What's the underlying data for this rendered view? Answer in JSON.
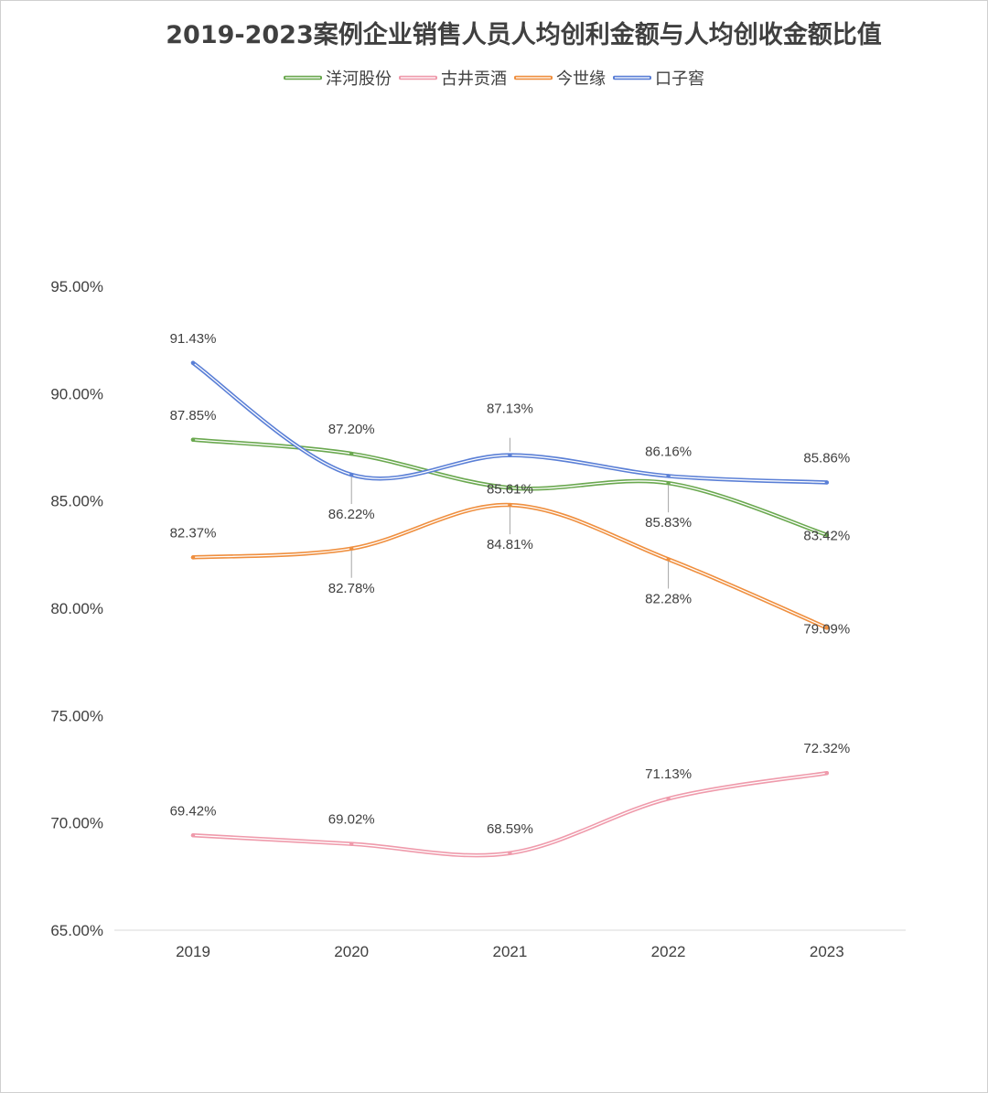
{
  "chart_data": {
    "type": "line",
    "title": "2019-2023案例企业销售人员人均创利金额与人均创收金额比值",
    "categories": [
      "2019",
      "2020",
      "2021",
      "2022",
      "2023"
    ],
    "ylim": [
      65,
      95
    ],
    "yticks": [
      65,
      70,
      75,
      80,
      85,
      90,
      95
    ],
    "ytick_labels": [
      "65.00%",
      "70.00%",
      "75.00%",
      "80.00%",
      "85.00%",
      "90.00%",
      "95.00%"
    ],
    "grid": false,
    "legend_position": "top",
    "smooth": true,
    "series": [
      {
        "name": "洋河股份",
        "color": "#6aa84f",
        "values": [
          87.85,
          87.2,
          85.61,
          85.83,
          83.42
        ],
        "labels": [
          "87.85%",
          "87.20%",
          "85.61%",
          "85.83%",
          "83.42%"
        ],
        "label_pos": [
          "above",
          "above",
          "on",
          "below",
          "on"
        ]
      },
      {
        "name": "古井贡酒",
        "color": "#ef9aab",
        "values": [
          69.42,
          69.02,
          68.59,
          71.13,
          72.32
        ],
        "labels": [
          "69.42%",
          "69.02%",
          "68.59%",
          "71.13%",
          "72.32%"
        ],
        "label_pos": [
          "above",
          "above",
          "above",
          "above",
          "above"
        ]
      },
      {
        "name": "今世缘",
        "color": "#ef8f3f",
        "values": [
          82.37,
          82.78,
          84.81,
          82.28,
          79.09
        ],
        "labels": [
          "82.37%",
          "82.78%",
          "84.81%",
          "82.28%",
          "79.09%"
        ],
        "label_pos": [
          "above",
          "below",
          "below",
          "below",
          "on"
        ]
      },
      {
        "name": "口子窖",
        "color": "#5a7fd6",
        "values": [
          91.43,
          86.22,
          87.13,
          86.16,
          85.86
        ],
        "labels": [
          "91.43%",
          "86.22%",
          "87.13%",
          "86.16%",
          "85.86%"
        ],
        "label_pos": [
          "above",
          "below",
          "above",
          "above",
          "above"
        ]
      }
    ]
  }
}
